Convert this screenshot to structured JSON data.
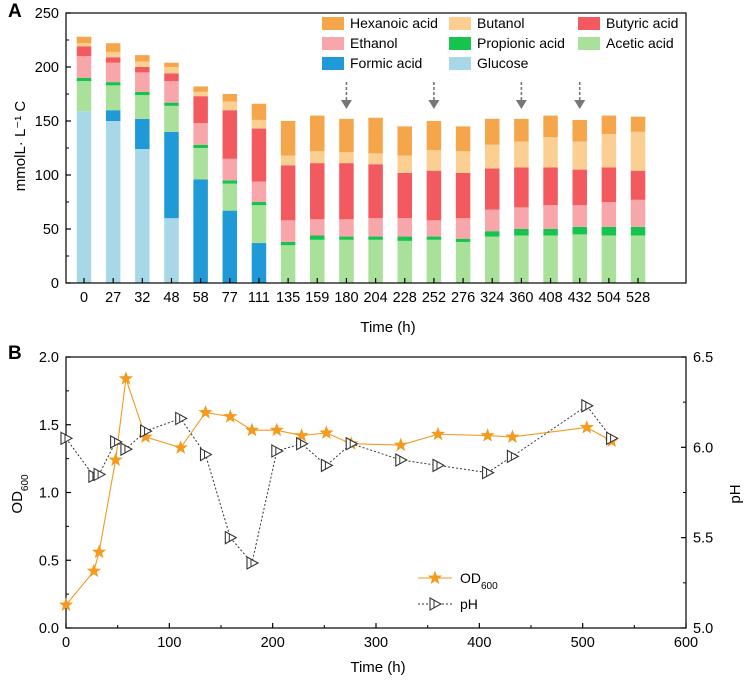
{
  "chart_data": [
    {
      "panel": "A",
      "type": "bar",
      "stacked": true,
      "ylabel": "mmolL· L⁻¹ C",
      "xlabel": "Time (h)",
      "ylim": [
        0,
        250
      ],
      "yticks": [
        "0",
        "50",
        "100",
        "150",
        "200",
        "250"
      ],
      "categories": [
        "0",
        "27",
        "32",
        "48",
        "58",
        "77",
        "111",
        "135",
        "159",
        "180",
        "204",
        "228",
        "252",
        "276",
        "324",
        "360",
        "408",
        "432",
        "504",
        "528"
      ],
      "arrow_categories": [
        "180",
        "252",
        "360",
        "432"
      ],
      "series": [
        {
          "name": "Glucose",
          "color": "#a8d8e8",
          "values": [
            159,
            150,
            124,
            60,
            0,
            0,
            0,
            0,
            0,
            0,
            0,
            0,
            0,
            0,
            0,
            0,
            0,
            0,
            0,
            0
          ]
        },
        {
          "name": "Formic acid",
          "color": "#1f9ad6",
          "values": [
            0,
            10,
            28,
            80,
            96,
            67,
            37,
            0,
            0,
            0,
            0,
            0,
            0,
            0,
            0,
            0,
            0,
            0,
            0,
            0
          ]
        },
        {
          "name": "Acetic acid",
          "color": "#a9e09a",
          "values": [
            28,
            23,
            22,
            24,
            29,
            25,
            35,
            35,
            40,
            40,
            40,
            39,
            40,
            38,
            43,
            44,
            44,
            45,
            44,
            44
          ]
        },
        {
          "name": "Propionic acid",
          "color": "#17c34f",
          "values": [
            3,
            3,
            3,
            3,
            3,
            3,
            3,
            3,
            4,
            3,
            3,
            4,
            3,
            3,
            5,
            6,
            6,
            7,
            8,
            8
          ]
        },
        {
          "name": "Ethanol",
          "color": "#f7a6a9",
          "values": [
            20,
            18,
            18,
            20,
            20,
            20,
            19,
            20,
            15,
            16,
            17,
            17,
            15,
            19,
            20,
            20,
            22,
            20,
            23,
            25
          ]
        },
        {
          "name": "Butyric acid",
          "color": "#f35a5f",
          "values": [
            9,
            5,
            5,
            7,
            25,
            45,
            49,
            51,
            52,
            52,
            50,
            42,
            46,
            42,
            38,
            37,
            35,
            33,
            32,
            27
          ]
        },
        {
          "name": "Butanol",
          "color": "#fbcf91",
          "values": [
            3,
            5,
            5,
            6,
            4,
            8,
            8,
            9,
            11,
            10,
            10,
            16,
            19,
            20,
            22,
            24,
            28,
            26,
            31,
            36
          ]
        },
        {
          "name": "Hexanoic acid",
          "color": "#f5a54a",
          "values": [
            6,
            8,
            6,
            4,
            5,
            7,
            15,
            32,
            33,
            31,
            33,
            27,
            27,
            23,
            24,
            21,
            20,
            20,
            17,
            14
          ]
        }
      ],
      "legend": [
        "Hexanoic acid",
        "Butanol",
        "Butyric acid",
        "Ethanol",
        "Propionic acid",
        "Acetic acid",
        "Formic acid",
        "Glucose"
      ]
    },
    {
      "panel": "B",
      "type": "line",
      "xlabel": "Time (h)",
      "xlim": [
        0,
        600
      ],
      "xticks": [
        "0",
        "100",
        "200",
        "300",
        "400",
        "500",
        "600"
      ],
      "y_left": {
        "label": "OD",
        "label_sub": "600",
        "lim": [
          0,
          2.0
        ],
        "ticks": [
          "0.0",
          "0.5",
          "1.0",
          "1.5",
          "2.0"
        ]
      },
      "y_right": {
        "label": "pH",
        "lim": [
          5.0,
          6.5
        ],
        "ticks": [
          "5.0",
          "5.5",
          "6.0",
          "6.5"
        ]
      },
      "series": [
        {
          "name": "OD",
          "name_sub": "600",
          "axis": "left",
          "color": "#f39a1f",
          "marker": "star",
          "line": "solid",
          "x": [
            0,
            27,
            32,
            48,
            58,
            77,
            111,
            135,
            159,
            180,
            204,
            228,
            252,
            276,
            324,
            360,
            408,
            432,
            504,
            528
          ],
          "y": [
            0.17,
            0.42,
            0.56,
            1.24,
            1.84,
            1.41,
            1.33,
            1.59,
            1.56,
            1.46,
            1.46,
            1.42,
            1.44,
            1.36,
            1.35,
            1.43,
            1.42,
            1.41,
            1.48,
            1.38
          ]
        },
        {
          "name": "pH",
          "axis": "right",
          "color": "#333333",
          "marker": "triangle-right",
          "line": "dotted",
          "x": [
            0,
            27,
            32,
            48,
            58,
            77,
            111,
            135,
            159,
            180,
            204,
            228,
            252,
            276,
            324,
            360,
            408,
            432,
            504,
            528
          ],
          "y": [
            6.05,
            5.84,
            5.85,
            6.03,
            5.99,
            6.09,
            6.16,
            5.96,
            5.5,
            5.36,
            5.98,
            6.02,
            5.9,
            6.02,
            5.93,
            5.9,
            5.86,
            5.95,
            6.23,
            6.05
          ]
        }
      ]
    }
  ]
}
